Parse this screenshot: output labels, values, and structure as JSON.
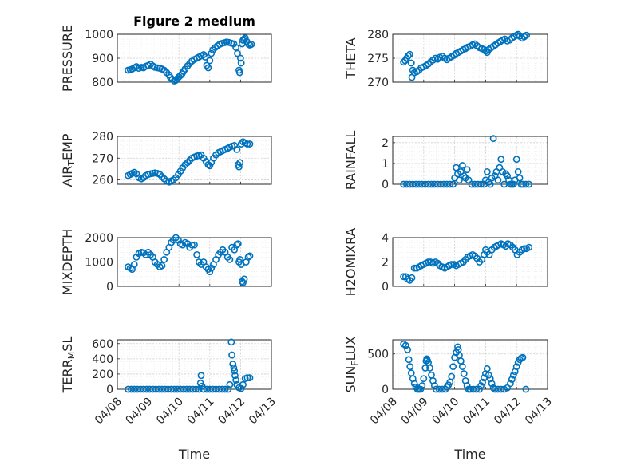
{
  "colors": {
    "marker": "#0072BD",
    "axis": "#262626"
  },
  "chart_data": [
    {
      "type": "scatter",
      "title": "Figure 2 medium",
      "ylabel": "PRESSURE",
      "ylim": [
        800,
        1000
      ],
      "yticks": [
        800,
        900,
        1000
      ],
      "ytick_labels": [
        "800",
        "900",
        "1000"
      ],
      "xlim": [
        0,
        5
      ],
      "x_format": "days from 04/08",
      "x": [
        0.35,
        0.42,
        0.48,
        0.55,
        0.62,
        0.7,
        0.78,
        0.85,
        0.92,
        1.0,
        1.08,
        1.15,
        1.22,
        1.3,
        1.38,
        1.45,
        1.52,
        1.6,
        1.68,
        1.72,
        1.78,
        1.85,
        1.9,
        1.95,
        2.0,
        2.05,
        2.1,
        2.15,
        2.2,
        2.28,
        2.35,
        2.42,
        2.5,
        2.58,
        2.65,
        2.72,
        2.8,
        2.85,
        2.9,
        2.95,
        3.0,
        3.05,
        3.1,
        3.18,
        3.25,
        3.32,
        3.4,
        3.48,
        3.55,
        3.62,
        3.7,
        3.78,
        3.85,
        3.9,
        3.95,
        3.97,
        4.0,
        4.02,
        4.05,
        4.08,
        4.12,
        4.15,
        4.2,
        4.25,
        4.3,
        4.35
      ],
      "y": [
        850,
        852,
        855,
        860,
        865,
        858,
        862,
        860,
        866,
        870,
        875,
        868,
        862,
        860,
        858,
        855,
        850,
        840,
        830,
        820,
        812,
        805,
        808,
        815,
        822,
        828,
        835,
        845,
        855,
        868,
        878,
        888,
        895,
        900,
        905,
        910,
        915,
        905,
        870,
        860,
        890,
        920,
        935,
        945,
        952,
        958,
        962,
        965,
        968,
        966,
        963,
        960,
        945,
        920,
        850,
        840,
        900,
        880,
        960,
        975,
        980,
        985,
        970,
        960,
        955,
        958
      ]
    },
    {
      "type": "scatter",
      "title": "",
      "ylabel": "THETA",
      "ylim": [
        270,
        280
      ],
      "yticks": [
        270,
        275,
        280
      ],
      "ytick_labels": [
        "270",
        "275",
        "280"
      ],
      "xlim": [
        0,
        5
      ],
      "x_format": "days from 04/08",
      "x": [
        0.35,
        0.4,
        0.45,
        0.5,
        0.55,
        0.6,
        0.62,
        0.65,
        0.7,
        0.78,
        0.85,
        0.92,
        1.0,
        1.08,
        1.15,
        1.22,
        1.3,
        1.38,
        1.45,
        1.52,
        1.6,
        1.68,
        1.75,
        1.82,
        1.9,
        1.98,
        2.05,
        2.12,
        2.2,
        2.28,
        2.35,
        2.42,
        2.5,
        2.58,
        2.65,
        2.72,
        2.8,
        2.88,
        2.95,
        3.0,
        3.05,
        3.1,
        3.18,
        3.25,
        3.32,
        3.4,
        3.48,
        3.55,
        3.62,
        3.7,
        3.78,
        3.85,
        3.92,
        4.0,
        4.05,
        4.1,
        4.18,
        4.25,
        4.32,
        4.4
      ],
      "y": [
        274.2,
        274.5,
        275.0,
        275.5,
        275.8,
        274.0,
        271.0,
        272.5,
        272.0,
        272.2,
        272.5,
        273.0,
        273.2,
        273.5,
        273.8,
        274.2,
        274.6,
        275.0,
        274.8,
        275.2,
        275.4,
        275.0,
        274.7,
        275.0,
        275.3,
        275.6,
        276.0,
        276.2,
        276.5,
        276.8,
        277.0,
        277.3,
        277.5,
        277.8,
        278.0,
        277.6,
        277.2,
        277.0,
        276.8,
        276.5,
        276.2,
        276.8,
        277.2,
        277.5,
        277.8,
        278.2,
        278.5,
        278.8,
        279.0,
        278.6,
        278.8,
        279.2,
        279.5,
        279.8,
        280.0,
        279.6,
        279.2,
        279.5,
        279.8,
        280.2
      ]
    },
    {
      "type": "scatter",
      "title": "",
      "ylabel": "AIR_TEMP",
      "ylim": [
        258,
        280
      ],
      "yticks": [
        260,
        270,
        280
      ],
      "ytick_labels": [
        "260",
        "270",
        "280"
      ],
      "xlim": [
        0,
        5
      ],
      "x_format": "days from 04/08",
      "x": [
        0.35,
        0.42,
        0.48,
        0.55,
        0.62,
        0.7,
        0.78,
        0.85,
        0.92,
        1.0,
        1.08,
        1.15,
        1.22,
        1.3,
        1.38,
        1.45,
        1.52,
        1.6,
        1.68,
        1.75,
        1.82,
        1.9,
        1.98,
        2.05,
        2.12,
        2.2,
        2.28,
        2.35,
        2.42,
        2.5,
        2.58,
        2.65,
        2.72,
        2.8,
        2.88,
        2.95,
        3.0,
        3.05,
        3.12,
        3.2,
        3.28,
        3.35,
        3.42,
        3.5,
        3.58,
        3.65,
        3.72,
        3.8,
        3.88,
        3.92,
        3.95,
        3.98,
        4.02,
        4.08,
        4.15,
        4.22,
        4.3
      ],
      "y": [
        262.0,
        262.5,
        263.0,
        263.5,
        262.8,
        261.0,
        260.5,
        261.0,
        262.0,
        262.5,
        262.8,
        263.0,
        263.2,
        263.0,
        262.5,
        261.5,
        260.5,
        259.5,
        259.0,
        259.5,
        260.0,
        261.0,
        262.5,
        264.0,
        265.5,
        267.0,
        268.0,
        269.0,
        270.0,
        270.5,
        271.0,
        271.2,
        271.5,
        270.0,
        268.5,
        267.0,
        266.5,
        268.0,
        270.0,
        271.5,
        272.5,
        273.0,
        273.5,
        274.0,
        274.5,
        275.0,
        275.5,
        275.8,
        274.0,
        267.0,
        266.0,
        268.0,
        276.5,
        277.5,
        277.0,
        276.5,
        276.5
      ]
    },
    {
      "type": "scatter",
      "title": "",
      "ylabel": "RAINFALL",
      "ylim": [
        0,
        2.3
      ],
      "yticks": [
        0,
        1,
        2
      ],
      "ytick_labels": [
        "0",
        "1",
        "2"
      ],
      "xlim": [
        0,
        5
      ],
      "x_format": "days from 04/08",
      "x": [
        0.35,
        0.45,
        0.55,
        0.65,
        0.75,
        0.85,
        0.95,
        1.05,
        1.15,
        1.25,
        1.35,
        1.45,
        1.55,
        1.65,
        1.75,
        1.85,
        1.95,
        2.0,
        2.05,
        2.1,
        2.15,
        2.2,
        2.25,
        2.3,
        2.35,
        2.4,
        2.45,
        2.55,
        2.65,
        2.75,
        2.85,
        2.95,
        3.0,
        3.05,
        3.1,
        3.15,
        3.2,
        3.25,
        3.3,
        3.35,
        3.4,
        3.45,
        3.5,
        3.55,
        3.6,
        3.65,
        3.7,
        3.75,
        3.8,
        3.85,
        3.9,
        3.95,
        4.0,
        4.05,
        4.1,
        4.15,
        4.2,
        4.3,
        4.4
      ],
      "y": [
        0,
        0,
        0,
        0,
        0,
        0,
        0,
        0,
        0,
        0,
        0,
        0,
        0,
        0,
        0,
        0,
        0,
        0.3,
        0.8,
        0.5,
        0.2,
        0.6,
        0.9,
        0.4,
        0.3,
        0.7,
        0.2,
        0,
        0,
        0,
        0,
        0,
        0.2,
        0.6,
        0.1,
        0,
        0.3,
        2.2,
        0.4,
        0.6,
        0.2,
        0.8,
        1.2,
        0.6,
        0,
        0.5,
        0.4,
        0.2,
        0,
        0,
        0,
        0.2,
        1.2,
        0.6,
        0.3,
        0,
        0,
        0,
        0
      ]
    },
    {
      "type": "scatter",
      "title": "",
      "ylabel": "MIXDEPTH",
      "ylim": [
        0,
        2000
      ],
      "yticks": [
        0,
        1000,
        2000
      ],
      "ytick_labels": [
        "0",
        "1000",
        "2000"
      ],
      "xlim": [
        0,
        5
      ],
      "x_format": "days from 04/08",
      "x": [
        0.35,
        0.42,
        0.48,
        0.55,
        0.62,
        0.7,
        0.78,
        0.85,
        0.92,
        1.0,
        1.08,
        1.15,
        1.22,
        1.3,
        1.38,
        1.45,
        1.52,
        1.6,
        1.68,
        1.75,
        1.82,
        1.9,
        1.98,
        2.05,
        2.12,
        2.2,
        2.28,
        2.35,
        2.42,
        2.5,
        2.58,
        2.65,
        2.72,
        2.8,
        2.88,
        2.95,
        3.0,
        3.05,
        3.12,
        3.2,
        3.28,
        3.35,
        3.42,
        3.5,
        3.58,
        3.65,
        3.72,
        3.8,
        3.88,
        3.92,
        3.95,
        3.98,
        4.02,
        4.05,
        4.08,
        4.12,
        4.18,
        4.25,
        4.3
      ],
      "y": [
        800,
        750,
        700,
        900,
        1200,
        1350,
        1400,
        1380,
        1300,
        1400,
        1300,
        1200,
        1000,
        900,
        800,
        850,
        1100,
        1400,
        1600,
        1800,
        1900,
        2000,
        1900,
        1750,
        1700,
        1800,
        1750,
        1600,
        1700,
        1700,
        1300,
        1000,
        900,
        1000,
        800,
        700,
        600,
        750,
        900,
        1100,
        1300,
        1400,
        1500,
        1400,
        1200,
        1100,
        1600,
        1500,
        1700,
        1750,
        1000,
        1100,
        900,
        200,
        150,
        300,
        1000,
        1200,
        1250
      ]
    },
    {
      "type": "scatter",
      "title": "",
      "ylabel": "H2OMIXRA",
      "ylim": [
        0,
        4
      ],
      "yticks": [
        0,
        2,
        4
      ],
      "ytick_labels": [
        "0",
        "2",
        "4"
      ],
      "xlim": [
        0,
        5
      ],
      "x_format": "days from 04/08",
      "x": [
        0.35,
        0.42,
        0.48,
        0.55,
        0.62,
        0.7,
        0.78,
        0.85,
        0.92,
        1.0,
        1.08,
        1.15,
        1.22,
        1.3,
        1.38,
        1.45,
        1.52,
        1.6,
        1.68,
        1.75,
        1.82,
        1.9,
        1.98,
        2.05,
        2.12,
        2.2,
        2.28,
        2.35,
        2.42,
        2.5,
        2.58,
        2.65,
        2.72,
        2.8,
        2.88,
        2.95,
        3.0,
        3.05,
        3.12,
        3.2,
        3.28,
        3.35,
        3.42,
        3.5,
        3.58,
        3.65,
        3.72,
        3.8,
        3.88,
        3.95,
        4.02,
        4.1,
        4.18,
        4.25,
        4.32,
        4.4
      ],
      "y": [
        0.8,
        0.8,
        0.6,
        0.5,
        0.7,
        1.5,
        1.5,
        1.6,
        1.7,
        1.8,
        1.9,
        2.0,
        2.0,
        1.9,
        2.0,
        1.9,
        1.7,
        1.6,
        1.5,
        1.6,
        1.7,
        1.8,
        1.8,
        1.7,
        1.8,
        1.9,
        2.0,
        2.2,
        2.4,
        2.5,
        2.6,
        2.5,
        2.3,
        2.0,
        2.2,
        2.6,
        3.0,
        2.8,
        2.6,
        3.0,
        3.2,
        3.3,
        3.4,
        3.5,
        3.4,
        3.3,
        3.5,
        3.4,
        3.2,
        3.0,
        2.6,
        2.8,
        3.0,
        3.1,
        3.1,
        3.2
      ]
    },
    {
      "type": "scatter",
      "title": "",
      "ylabel": "TERR_MSL",
      "ylim": [
        0,
        650
      ],
      "yticks": [
        0,
        200,
        400,
        600
      ],
      "ytick_labels": [
        "0",
        "200",
        "400",
        "600"
      ],
      "xlim": [
        0,
        5
      ],
      "x_format": "days from 04/08",
      "x": [
        0.35,
        0.45,
        0.55,
        0.65,
        0.75,
        0.85,
        0.95,
        1.05,
        1.15,
        1.25,
        1.35,
        1.45,
        1.55,
        1.65,
        1.75,
        1.85,
        1.95,
        2.05,
        2.15,
        2.25,
        2.35,
        2.45,
        2.55,
        2.65,
        2.7,
        2.72,
        2.75,
        2.8,
        2.9,
        3.0,
        3.1,
        3.2,
        3.3,
        3.4,
        3.5,
        3.6,
        3.65,
        3.7,
        3.72,
        3.75,
        3.78,
        3.8,
        3.82,
        3.85,
        3.88,
        3.95,
        4.02,
        4.08,
        4.15,
        4.22,
        4.3
      ],
      "y": [
        0,
        0,
        0,
        0,
        0,
        0,
        0,
        0,
        0,
        0,
        0,
        0,
        0,
        0,
        0,
        0,
        0,
        0,
        0,
        0,
        0,
        0,
        0,
        0,
        80,
        180,
        40,
        0,
        0,
        0,
        0,
        0,
        0,
        0,
        0,
        0,
        60,
        620,
        450,
        330,
        280,
        240,
        180,
        120,
        60,
        20,
        10,
        60,
        140,
        150,
        150
      ]
    },
    {
      "type": "scatter",
      "title": "",
      "ylabel": "SUN_FLUX",
      "ylim": [
        0,
        700
      ],
      "yticks": [
        0,
        500
      ],
      "ytick_labels": [
        "0",
        "500"
      ],
      "xlim": [
        0,
        5
      ],
      "x_format": "days from 04/08",
      "x": [
        0.35,
        0.42,
        0.48,
        0.52,
        0.56,
        0.6,
        0.65,
        0.7,
        0.75,
        0.8,
        0.85,
        0.9,
        0.95,
        1.0,
        1.05,
        1.08,
        1.1,
        1.12,
        1.15,
        1.2,
        1.25,
        1.3,
        1.35,
        1.4,
        1.5,
        1.6,
        1.7,
        1.75,
        1.8,
        1.85,
        1.9,
        1.95,
        2.0,
        2.05,
        2.1,
        2.12,
        2.15,
        2.2,
        2.25,
        2.3,
        2.35,
        2.4,
        2.45,
        2.5,
        2.6,
        2.7,
        2.8,
        2.85,
        2.9,
        2.95,
        3.0,
        3.05,
        3.1,
        3.15,
        3.2,
        3.25,
        3.3,
        3.4,
        3.5,
        3.6,
        3.7,
        3.8,
        3.85,
        3.9,
        3.95,
        4.0,
        4.05,
        4.1,
        4.15,
        4.2,
        4.3
      ],
      "y": [
        640,
        620,
        560,
        420,
        320,
        230,
        150,
        80,
        30,
        0,
        0,
        0,
        50,
        150,
        300,
        400,
        430,
        410,
        380,
        300,
        200,
        120,
        50,
        0,
        0,
        0,
        0,
        30,
        60,
        100,
        180,
        320,
        450,
        520,
        600,
        560,
        480,
        400,
        320,
        220,
        120,
        50,
        0,
        0,
        0,
        0,
        0,
        50,
        100,
        160,
        220,
        290,
        200,
        150,
        80,
        20,
        0,
        0,
        0,
        0,
        20,
        80,
        140,
        200,
        250,
        320,
        380,
        420,
        440,
        450,
        0
      ]
    }
  ],
  "xticks": [
    0,
    1,
    2,
    3,
    4,
    5
  ],
  "xtick_labels": [
    "04/08",
    "04/09",
    "04/10",
    "04/11",
    "04/12",
    "04/13"
  ],
  "xlabel": "Time",
  "labels": {
    "pressure": "PRESSURE",
    "theta": "THETA",
    "air_temp_main": "AIR",
    "air_temp_sub": "T",
    "air_temp_tail": "EMP",
    "rainfall": "RAINFALL",
    "mixdepth": "MIXDEPTH",
    "h2omixra": "H2OMIXRA",
    "terr_main": "TERR",
    "terr_sub": "M",
    "terr_tail": "SL",
    "sun_main": "SUN",
    "sun_sub": "F",
    "sun_tail": "LUX",
    "title": "Figure 2 medium"
  }
}
